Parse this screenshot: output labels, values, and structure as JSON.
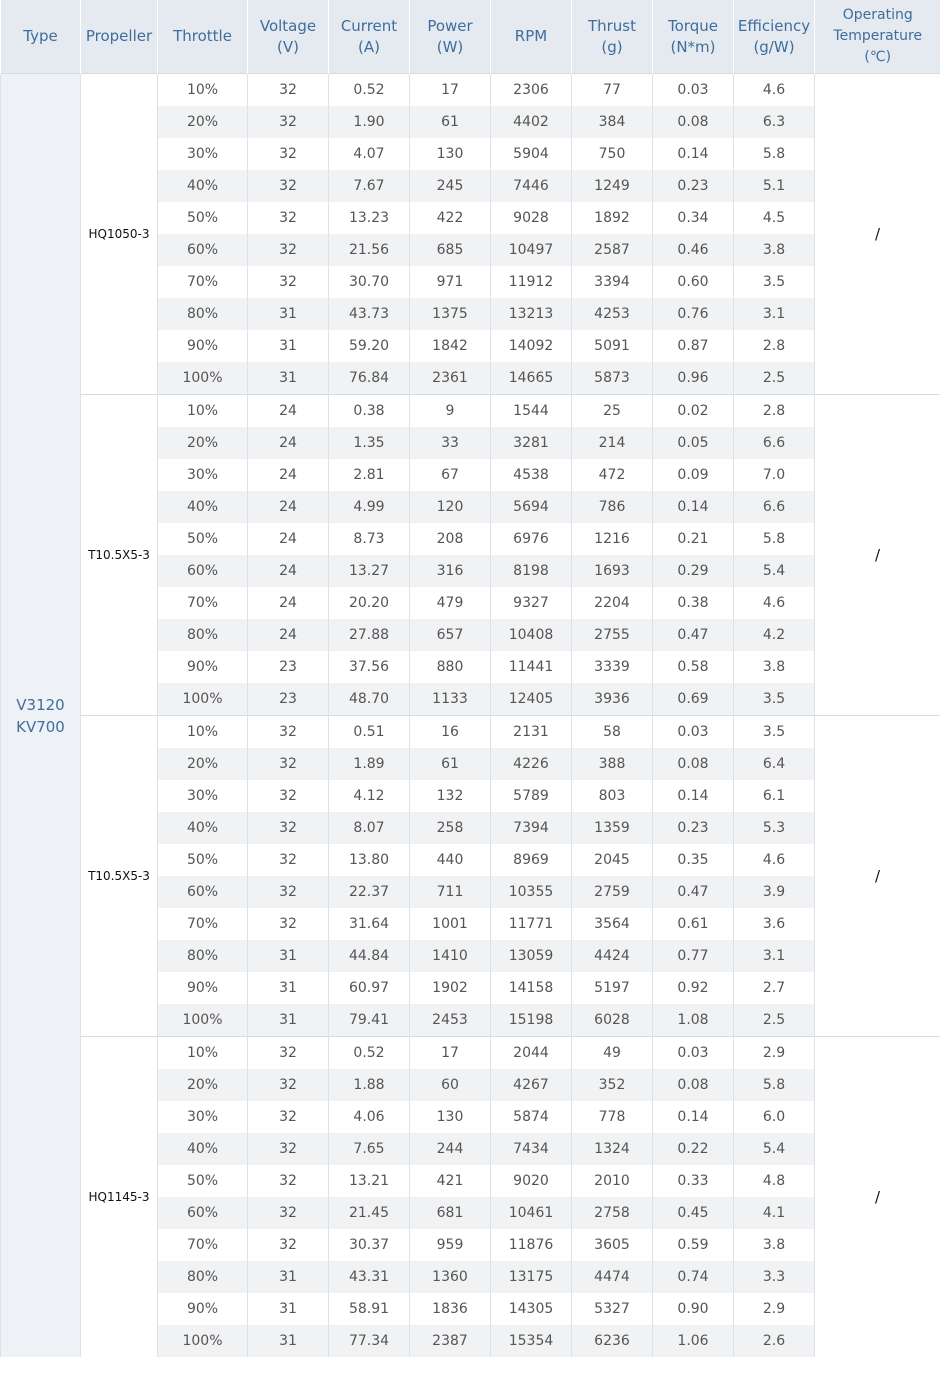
{
  "header": [
    [
      "Type"
    ],
    [
      "Propeller"
    ],
    [
      "Throttle"
    ],
    [
      "Voltage",
      "(V)"
    ],
    [
      "Current",
      "(A)"
    ],
    [
      "Power",
      "(W)"
    ],
    [
      "RPM"
    ],
    [
      "Thrust",
      "(g)"
    ],
    [
      "Torque",
      "(N*m)"
    ],
    [
      "Efficiency",
      "(g/W)"
    ],
    [
      "Operating",
      "Temperature",
      "(℃)"
    ]
  ],
  "type": [
    "V3120",
    "KV700"
  ],
  "groups": [
    {
      "propeller": "HQ1050-3",
      "temperature": "/",
      "rows": [
        [
          "10%",
          "32",
          "0.52",
          "17",
          "2306",
          "77",
          "0.03",
          "4.6"
        ],
        [
          "20%",
          "32",
          "1.90",
          "61",
          "4402",
          "384",
          "0.08",
          "6.3"
        ],
        [
          "30%",
          "32",
          "4.07",
          "130",
          "5904",
          "750",
          "0.14",
          "5.8"
        ],
        [
          "40%",
          "32",
          "7.67",
          "245",
          "7446",
          "1249",
          "0.23",
          "5.1"
        ],
        [
          "50%",
          "32",
          "13.23",
          "422",
          "9028",
          "1892",
          "0.34",
          "4.5"
        ],
        [
          "60%",
          "32",
          "21.56",
          "685",
          "10497",
          "2587",
          "0.46",
          "3.8"
        ],
        [
          "70%",
          "32",
          "30.70",
          "971",
          "11912",
          "3394",
          "0.60",
          "3.5"
        ],
        [
          "80%",
          "31",
          "43.73",
          "1375",
          "13213",
          "4253",
          "0.76",
          "3.1"
        ],
        [
          "90%",
          "31",
          "59.20",
          "1842",
          "14092",
          "5091",
          "0.87",
          "2.8"
        ],
        [
          "100%",
          "31",
          "76.84",
          "2361",
          "14665",
          "5873",
          "0.96",
          "2.5"
        ]
      ]
    },
    {
      "propeller": "T10.5X5-3",
      "temperature": "/",
      "rows": [
        [
          "10%",
          "24",
          "0.38",
          "9",
          "1544",
          "25",
          "0.02",
          "2.8"
        ],
        [
          "20%",
          "24",
          "1.35",
          "33",
          "3281",
          "214",
          "0.05",
          "6.6"
        ],
        [
          "30%",
          "24",
          "2.81",
          "67",
          "4538",
          "472",
          "0.09",
          "7.0"
        ],
        [
          "40%",
          "24",
          "4.99",
          "120",
          "5694",
          "786",
          "0.14",
          "6.6"
        ],
        [
          "50%",
          "24",
          "8.73",
          "208",
          "6976",
          "1216",
          "0.21",
          "5.8"
        ],
        [
          "60%",
          "24",
          "13.27",
          "316",
          "8198",
          "1693",
          "0.29",
          "5.4"
        ],
        [
          "70%",
          "24",
          "20.20",
          "479",
          "9327",
          "2204",
          "0.38",
          "4.6"
        ],
        [
          "80%",
          "24",
          "27.88",
          "657",
          "10408",
          "2755",
          "0.47",
          "4.2"
        ],
        [
          "90%",
          "23",
          "37.56",
          "880",
          "11441",
          "3339",
          "0.58",
          "3.8"
        ],
        [
          "100%",
          "23",
          "48.70",
          "1133",
          "12405",
          "3936",
          "0.69",
          "3.5"
        ]
      ]
    },
    {
      "propeller": "T10.5X5-3",
      "temperature": "/",
      "rows": [
        [
          "10%",
          "32",
          "0.51",
          "16",
          "2131",
          "58",
          "0.03",
          "3.5"
        ],
        [
          "20%",
          "32",
          "1.89",
          "61",
          "4226",
          "388",
          "0.08",
          "6.4"
        ],
        [
          "30%",
          "32",
          "4.12",
          "132",
          "5789",
          "803",
          "0.14",
          "6.1"
        ],
        [
          "40%",
          "32",
          "8.07",
          "258",
          "7394",
          "1359",
          "0.23",
          "5.3"
        ],
        [
          "50%",
          "32",
          "13.80",
          "440",
          "8969",
          "2045",
          "0.35",
          "4.6"
        ],
        [
          "60%",
          "32",
          "22.37",
          "711",
          "10355",
          "2759",
          "0.47",
          "3.9"
        ],
        [
          "70%",
          "32",
          "31.64",
          "1001",
          "11771",
          "3564",
          "0.61",
          "3.6"
        ],
        [
          "80%",
          "31",
          "44.84",
          "1410",
          "13059",
          "4424",
          "0.77",
          "3.1"
        ],
        [
          "90%",
          "31",
          "60.97",
          "1902",
          "14158",
          "5197",
          "0.92",
          "2.7"
        ],
        [
          "100%",
          "31",
          "79.41",
          "2453",
          "15198",
          "6028",
          "1.08",
          "2.5"
        ]
      ]
    },
    {
      "propeller": "HQ1145-3",
      "temperature": "/",
      "rows": [
        [
          "10%",
          "32",
          "0.52",
          "17",
          "2044",
          "49",
          "0.03",
          "2.9"
        ],
        [
          "20%",
          "32",
          "1.88",
          "60",
          "4267",
          "352",
          "0.08",
          "5.8"
        ],
        [
          "30%",
          "32",
          "4.06",
          "130",
          "5874",
          "778",
          "0.14",
          "6.0"
        ],
        [
          "40%",
          "32",
          "7.65",
          "244",
          "7434",
          "1324",
          "0.22",
          "5.4"
        ],
        [
          "50%",
          "32",
          "13.21",
          "421",
          "9020",
          "2010",
          "0.33",
          "4.8"
        ],
        [
          "60%",
          "32",
          "21.45",
          "681",
          "10461",
          "2758",
          "0.45",
          "4.1"
        ],
        [
          "70%",
          "32",
          "30.37",
          "959",
          "11876",
          "3605",
          "0.59",
          "3.8"
        ],
        [
          "80%",
          "31",
          "43.31",
          "1360",
          "13175",
          "4474",
          "0.74",
          "3.3"
        ],
        [
          "90%",
          "31",
          "58.91",
          "1836",
          "14305",
          "5327",
          "0.90",
          "2.9"
        ],
        [
          "100%",
          "31",
          "77.34",
          "2387",
          "15354",
          "6236",
          "1.06",
          "2.6"
        ]
      ]
    }
  ]
}
